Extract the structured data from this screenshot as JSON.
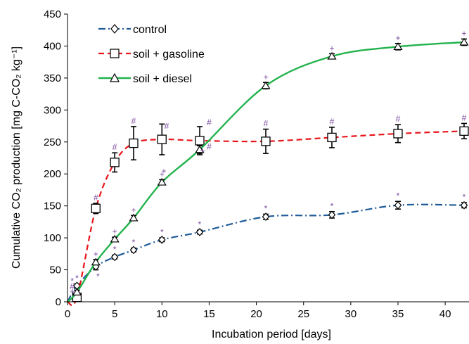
{
  "chart_data": {
    "type": "line",
    "title": "",
    "xlabel": "Incubation period [days]",
    "ylabel": "Cumulative CO₂ production [mg C-CO₂ kg⁻¹]",
    "xlim": [
      0,
      42
    ],
    "ylim": [
      0,
      450
    ],
    "xticks": [
      0,
      5,
      10,
      15,
      20,
      25,
      30,
      35,
      40
    ],
    "yticks": [
      0,
      50,
      100,
      150,
      200,
      250,
      300,
      350,
      400,
      450
    ],
    "grid": false,
    "legend_position": "top-left",
    "series": [
      {
        "name": "control",
        "color": "#1F5C99",
        "line_style": "dash-dot",
        "marker": "diamond",
        "points": [
          {
            "x": 0,
            "y": 0
          },
          {
            "x": 1,
            "y": 25,
            "err": 3,
            "sig": "*"
          },
          {
            "x": 3,
            "y": 55,
            "err": 5,
            "sig": "*"
          },
          {
            "x": 5,
            "y": 70,
            "err": 3,
            "sig": "*"
          },
          {
            "x": 7,
            "y": 81,
            "err": 3,
            "sig": "*"
          },
          {
            "x": 10,
            "y": 97,
            "err": 3,
            "sig": "*"
          },
          {
            "x": 14,
            "y": 109,
            "err": 3,
            "sig": "*"
          },
          {
            "x": 21,
            "y": 133,
            "err": 4,
            "sig": "*"
          },
          {
            "x": 28,
            "y": 136,
            "err": 5,
            "sig": "*"
          },
          {
            "x": 35,
            "y": 151,
            "err": 6,
            "sig": "*"
          },
          {
            "x": 42,
            "y": 151,
            "err": 4,
            "sig": "*"
          }
        ]
      },
      {
        "name": "soil + gasoline",
        "color": "#E8141B",
        "line_style": "dashed",
        "marker": "square",
        "points": [
          {
            "x": 0,
            "y": 0
          },
          {
            "x": 1,
            "y": 7,
            "err": 4,
            "sig": ""
          },
          {
            "x": 3,
            "y": 146,
            "err": 8,
            "sig": "#"
          },
          {
            "x": 5,
            "y": 218,
            "err": 15,
            "sig": "#"
          },
          {
            "x": 7,
            "y": 248,
            "err": 26,
            "sig": "#"
          },
          {
            "x": 10,
            "y": 254,
            "err": 24,
            "sig": ""
          },
          {
            "x": 14,
            "y": 252,
            "err": 22,
            "sig": ""
          },
          {
            "x": 21,
            "y": 251,
            "err": 19,
            "sig": "#"
          },
          {
            "x": 28,
            "y": 257,
            "err": 16,
            "sig": "#"
          },
          {
            "x": 35,
            "y": 263,
            "err": 14,
            "sig": "#"
          },
          {
            "x": 42,
            "y": 267,
            "err": 12,
            "sig": "#"
          }
        ]
      },
      {
        "name": "soil + diesel",
        "color": "#22B24C",
        "line_style": "solid",
        "marker": "triangle",
        "points": [
          {
            "x": 0,
            "y": 0
          },
          {
            "x": 1,
            "y": 15,
            "err": 3,
            "sig": ""
          },
          {
            "x": 3,
            "y": 62,
            "err": 4,
            "sig": "+"
          },
          {
            "x": 5,
            "y": 98,
            "err": 3,
            "sig": "+"
          },
          {
            "x": 7,
            "y": 131,
            "err": 4,
            "sig": "+"
          },
          {
            "x": 10,
            "y": 187,
            "err": 4,
            "sig": "+"
          },
          {
            "x": 14,
            "y": 238,
            "err": 6,
            "sig": ""
          },
          {
            "x": 21,
            "y": 338,
            "err": 5,
            "sig": "+"
          },
          {
            "x": 28,
            "y": 384,
            "err": 4,
            "sig": "+"
          },
          {
            "x": 35,
            "y": 399,
            "err": 5,
            "sig": "+"
          },
          {
            "x": 42,
            "y": 406,
            "err": 5,
            "sig": "+"
          }
        ]
      }
    ],
    "extra_annotations": [
      {
        "text": "*",
        "x": 0.5,
        "y": 28,
        "color": "#7A4A9E"
      },
      {
        "text": "#",
        "x": 0.5,
        "y": 20,
        "color": "#7A4A9E"
      },
      {
        "text": "+",
        "x": 0.5,
        "y": 12,
        "color": "#7A4A9E"
      },
      {
        "text": "#",
        "x": 10.5,
        "y": 270,
        "color": "#7A4A9E"
      },
      {
        "text": "+",
        "x": 10.2,
        "y": 200,
        "color": "#7A4A9E"
      },
      {
        "text": "#",
        "x": 15,
        "y": 276,
        "color": "#7A4A9E"
      },
      {
        "text": "#",
        "x": 15,
        "y": 238,
        "color": "#7A4A9E"
      },
      {
        "text": "+",
        "x": 14.3,
        "y": 232,
        "color": "#7A4A9E"
      }
    ],
    "annotation_color": "#7A4A9E"
  }
}
